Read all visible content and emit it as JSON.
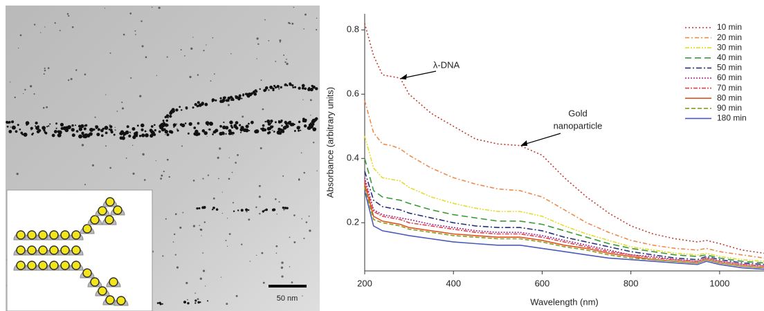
{
  "image": {
    "scale_bar": "50 nm"
  },
  "chart_data": {
    "type": "line",
    "xlabel": "Wavelength (nm)",
    "ylabel": "Absorbance (arbitrary units)",
    "annotations": [
      "λ-DNA",
      [
        "Gold",
        "nanoparticle"
      ]
    ],
    "x": [
      200,
      220,
      240,
      260,
      280,
      300,
      350,
      400,
      450,
      500,
      550,
      600,
      650,
      700,
      750,
      800,
      850,
      900,
      950,
      970,
      1000,
      1050,
      1100
    ],
    "xlim": [
      200,
      1100
    ],
    "xticks": [
      200,
      400,
      600,
      800,
      1000
    ],
    "ylim": [
      0.05,
      0.85
    ],
    "yticks": [
      0.2,
      0.4,
      0.6,
      0.8
    ],
    "legend": "upper right",
    "series": [
      {
        "name": "10 min",
        "color": "#c0392b",
        "dash": "2 3",
        "values": [
          0.82,
          0.72,
          0.66,
          0.655,
          0.65,
          0.6,
          0.54,
          0.5,
          0.46,
          0.445,
          0.44,
          0.41,
          0.34,
          0.28,
          0.23,
          0.19,
          0.165,
          0.15,
          0.14,
          0.145,
          0.135,
          0.115,
          0.105
        ]
      },
      {
        "name": "20 min",
        "color": "#f08a4b",
        "dash": "6 3 2 3",
        "values": [
          0.58,
          0.48,
          0.445,
          0.44,
          0.43,
          0.41,
          0.37,
          0.34,
          0.32,
          0.305,
          0.3,
          0.28,
          0.24,
          0.2,
          0.17,
          0.145,
          0.13,
          0.12,
          0.115,
          0.12,
          0.11,
          0.1,
          0.09
        ]
      },
      {
        "name": "30 min",
        "color": "#e6dc2a",
        "dash": "6 2 2 2 2 2",
        "values": [
          0.47,
          0.37,
          0.34,
          0.335,
          0.33,
          0.31,
          0.28,
          0.26,
          0.245,
          0.235,
          0.235,
          0.22,
          0.19,
          0.165,
          0.145,
          0.125,
          0.115,
          0.105,
          0.1,
          0.105,
          0.095,
          0.085,
          0.08
        ]
      },
      {
        "name": "40 min",
        "color": "#3a9a3a",
        "dash": "9 5",
        "values": [
          0.4,
          0.3,
          0.28,
          0.275,
          0.27,
          0.26,
          0.24,
          0.225,
          0.215,
          0.205,
          0.205,
          0.195,
          0.175,
          0.155,
          0.135,
          0.12,
          0.11,
          0.1,
          0.095,
          0.1,
          0.09,
          0.08,
          0.075
        ]
      },
      {
        "name": "50 min",
        "color": "#26307a",
        "dash": "8 3 2 3",
        "values": [
          0.36,
          0.27,
          0.25,
          0.245,
          0.24,
          0.23,
          0.215,
          0.2,
          0.19,
          0.185,
          0.185,
          0.175,
          0.155,
          0.14,
          0.125,
          0.11,
          0.1,
          0.09,
          0.085,
          0.095,
          0.085,
          0.075,
          0.07
        ]
      },
      {
        "name": "60 min",
        "color": "#a0268a",
        "dash": "2 2",
        "values": [
          0.34,
          0.24,
          0.225,
          0.22,
          0.215,
          0.21,
          0.195,
          0.185,
          0.175,
          0.17,
          0.17,
          0.16,
          0.145,
          0.13,
          0.115,
          0.1,
          0.095,
          0.085,
          0.08,
          0.09,
          0.08,
          0.07,
          0.065
        ]
      },
      {
        "name": "70 min",
        "color": "#e0404a",
        "dash": "6 2 2 2",
        "values": [
          0.33,
          0.235,
          0.22,
          0.215,
          0.21,
          0.2,
          0.19,
          0.18,
          0.17,
          0.165,
          0.165,
          0.155,
          0.14,
          0.125,
          0.11,
          0.1,
          0.09,
          0.085,
          0.08,
          0.09,
          0.08,
          0.07,
          0.065
        ]
      },
      {
        "name": "80 min",
        "color": "#e0531f",
        "dash": "none",
        "values": [
          0.32,
          0.22,
          0.205,
          0.2,
          0.195,
          0.185,
          0.175,
          0.165,
          0.16,
          0.155,
          0.155,
          0.145,
          0.13,
          0.12,
          0.105,
          0.095,
          0.085,
          0.08,
          0.075,
          0.085,
          0.075,
          0.065,
          0.06
        ]
      },
      {
        "name": "90 min",
        "color": "#8a9a1a",
        "dash": "6 3",
        "values": [
          0.31,
          0.21,
          0.2,
          0.195,
          0.19,
          0.18,
          0.17,
          0.16,
          0.155,
          0.15,
          0.15,
          0.14,
          0.125,
          0.115,
          0.1,
          0.09,
          0.085,
          0.08,
          0.075,
          0.085,
          0.075,
          0.065,
          0.06
        ]
      },
      {
        "name": "180 min",
        "color": "#4a5ab8",
        "dash": "none",
        "values": [
          0.3,
          0.19,
          0.175,
          0.17,
          0.165,
          0.16,
          0.15,
          0.14,
          0.135,
          0.13,
          0.13,
          0.12,
          0.11,
          0.1,
          0.09,
          0.085,
          0.08,
          0.075,
          0.07,
          0.08,
          0.07,
          0.06,
          0.055
        ]
      }
    ]
  }
}
